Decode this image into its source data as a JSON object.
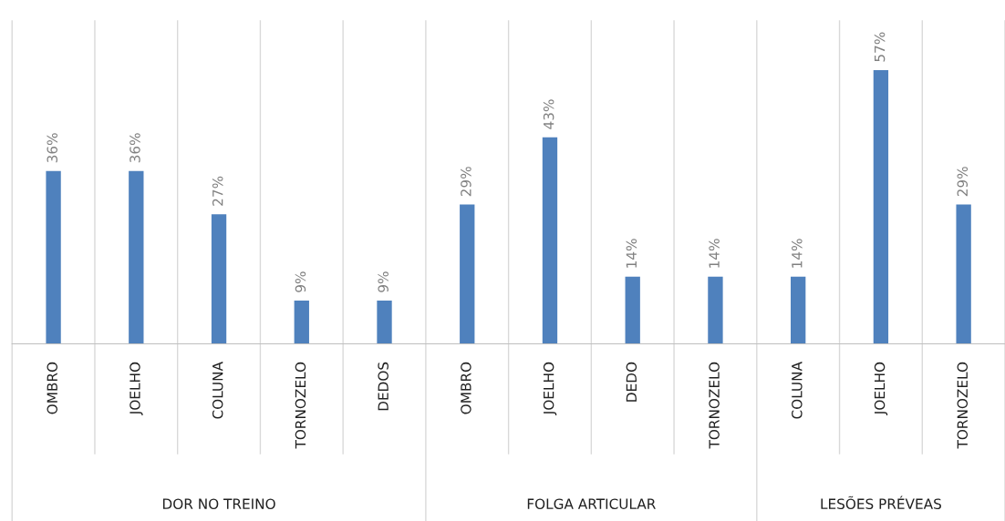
{
  "chart_data": {
    "type": "bar",
    "categories": [
      "OMBRO",
      "JOELHO",
      "COLUNA",
      "TORNOZELO",
      "DEDOS",
      "OMBRO",
      "JOELHO",
      "DEDO",
      "TORNOZELO",
      "COLUNA",
      "JOELHO",
      "TORNOZELO"
    ],
    "values": [
      36,
      36,
      27,
      9,
      9,
      29,
      43,
      14,
      14,
      14,
      57,
      29
    ],
    "value_labels": [
      "36%",
      "36%",
      "27%",
      "9%",
      "9%",
      "29%",
      "43%",
      "14%",
      "14%",
      "14%",
      "57%",
      "29%"
    ],
    "color": "#4f81bd",
    "annotations": [
      "DOR NO TREINO",
      "FOLGA ARTICULAR",
      "LESÕES PRÉVEAS"
    ],
    "grid": false
  }
}
